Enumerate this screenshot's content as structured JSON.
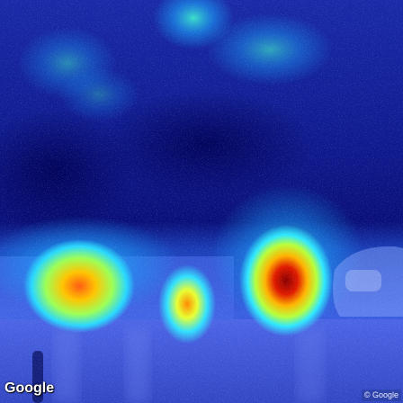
{
  "image": {
    "description_kind": "street-view photo with attention heatmap overlay",
    "heatmap_palette": [
      "#00007f",
      "#0033cc",
      "#00aaff",
      "#33ffcc",
      "#ccff33",
      "#ffcc00",
      "#ff3300",
      "#800000"
    ]
  },
  "overlay": {
    "logo_text": "Google",
    "copyright_text": "© Google"
  }
}
